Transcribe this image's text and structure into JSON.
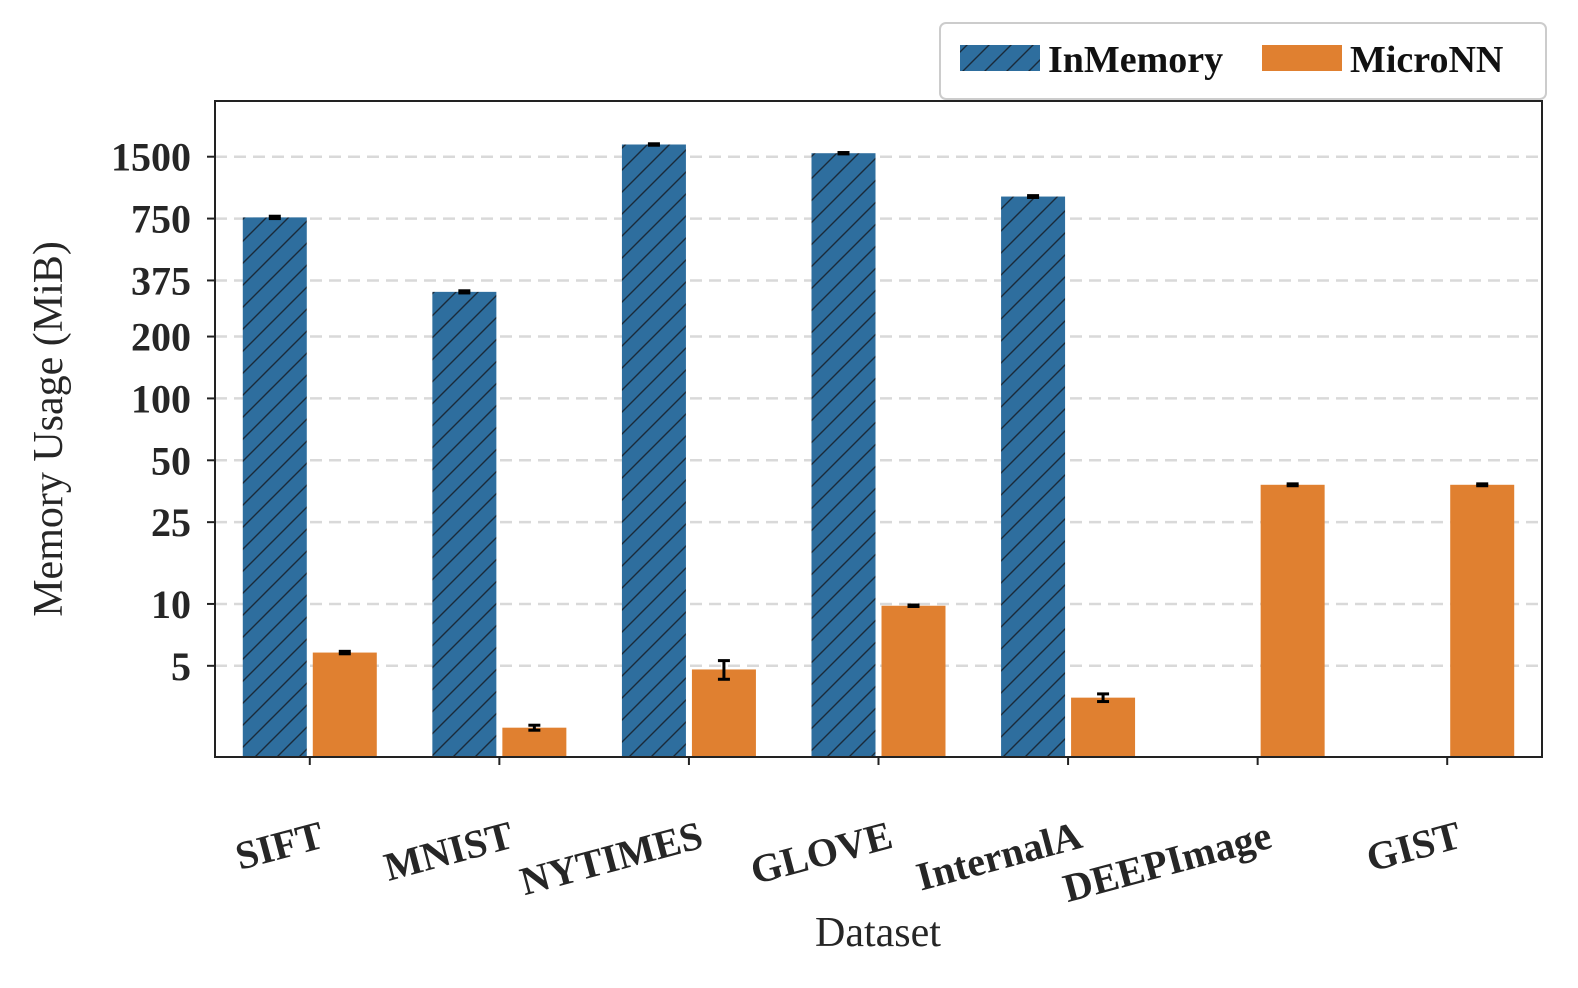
{
  "chart_data": {
    "type": "bar",
    "title": "",
    "xlabel": "Dataset",
    "ylabel": "Memory Usage (MiB)",
    "yscale": "log",
    "ylim": [
      1.8,
      2800
    ],
    "yticks": [
      5,
      10,
      25,
      50,
      100,
      200,
      375,
      750,
      1500
    ],
    "grid": "horizontal dashed",
    "legend_position": "top-right",
    "categories": [
      "SIFT",
      "MNIST",
      "NYTIMES",
      "GLOVE",
      "InternalA",
      "DEEPImage",
      "GIST"
    ],
    "series": [
      {
        "name": "InMemory",
        "color": "#2e6e9e",
        "pattern": "hatch",
        "values": [
          760,
          330,
          1720,
          1560,
          960,
          null,
          null
        ],
        "errors": [
          10,
          4,
          14,
          12,
          10,
          null,
          null
        ]
      },
      {
        "name": "MicroNN",
        "color": "#e08030",
        "pattern": "solid",
        "values": [
          5.8,
          2.5,
          4.8,
          9.8,
          3.5,
          38,
          38
        ],
        "errors": [
          0.08,
          0.07,
          0.5,
          0.08,
          0.15,
          0.4,
          0.4
        ]
      }
    ]
  }
}
